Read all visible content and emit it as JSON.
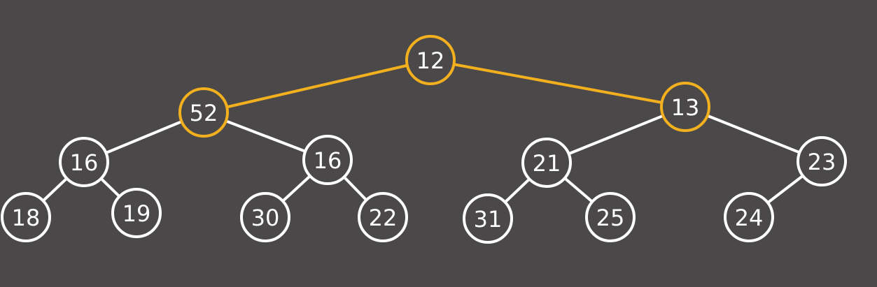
{
  "colors": {
    "background": "#4a4849",
    "node_fill": "#4a4849",
    "default_stroke": "#ffffff",
    "highlight_stroke": "#f2b01e",
    "label": "#ffffff"
  },
  "tree": {
    "nodes": [
      {
        "id": "n12",
        "label": "12",
        "highlighted": true
      },
      {
        "id": "n52",
        "label": "52",
        "highlighted": true
      },
      {
        "id": "n13",
        "label": "13",
        "highlighted": true
      },
      {
        "id": "n16a",
        "label": "16",
        "highlighted": false
      },
      {
        "id": "n16b",
        "label": "16",
        "highlighted": false
      },
      {
        "id": "n21",
        "label": "21",
        "highlighted": false
      },
      {
        "id": "n23",
        "label": "23",
        "highlighted": false
      },
      {
        "id": "n18",
        "label": "18",
        "highlighted": false
      },
      {
        "id": "n19",
        "label": "19",
        "highlighted": false
      },
      {
        "id": "n30",
        "label": "30",
        "highlighted": false
      },
      {
        "id": "n22",
        "label": "22",
        "highlighted": false
      },
      {
        "id": "n31",
        "label": "31",
        "highlighted": false
      },
      {
        "id": "n25",
        "label": "25",
        "highlighted": false
      },
      {
        "id": "n24",
        "label": "24",
        "highlighted": false
      }
    ],
    "edges": [
      {
        "from": "n12",
        "to": "n52",
        "highlighted": true
      },
      {
        "from": "n12",
        "to": "n13",
        "highlighted": true
      },
      {
        "from": "n52",
        "to": "n16a",
        "highlighted": false
      },
      {
        "from": "n52",
        "to": "n16b",
        "highlighted": false
      },
      {
        "from": "n13",
        "to": "n21",
        "highlighted": false
      },
      {
        "from": "n13",
        "to": "n23",
        "highlighted": false
      },
      {
        "from": "n16a",
        "to": "n18",
        "highlighted": false
      },
      {
        "from": "n16a",
        "to": "n19",
        "highlighted": false
      },
      {
        "from": "n16b",
        "to": "n30",
        "highlighted": false
      },
      {
        "from": "n16b",
        "to": "n22",
        "highlighted": false
      },
      {
        "from": "n21",
        "to": "n31",
        "highlighted": false
      },
      {
        "from": "n21",
        "to": "n25",
        "highlighted": false
      },
      {
        "from": "n23",
        "to": "n24",
        "highlighted": false
      }
    ]
  }
}
